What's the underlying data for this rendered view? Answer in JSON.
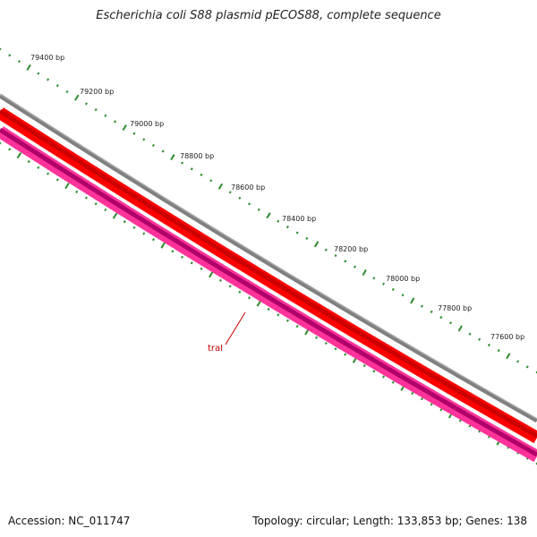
{
  "title": "Escherichia coli S88 plasmid pECOS88, complete sequence",
  "tick_labels": [
    "79400 bp",
    "79200 bp",
    "79000 bp",
    "78800 bp",
    "78600 bp",
    "78400 bp",
    "78200 bp",
    "78000 bp",
    "77800 bp",
    "77600 bp"
  ],
  "gene_label": "traI",
  "footer": {
    "accession": "Accession: NC_011747",
    "summary": "Topology: circular; Length: 133,853 bp; Genes: 138"
  },
  "colors": {
    "ruler_ticks": "#2e8b2e",
    "backbone": "#808080",
    "forward_strand": "#ff0000",
    "forward_strand_dark": "#cc0000",
    "reverse_strand": "#ff3399",
    "reverse_strand_dark": "#b0006a",
    "gene_label": "#cc0000"
  }
}
